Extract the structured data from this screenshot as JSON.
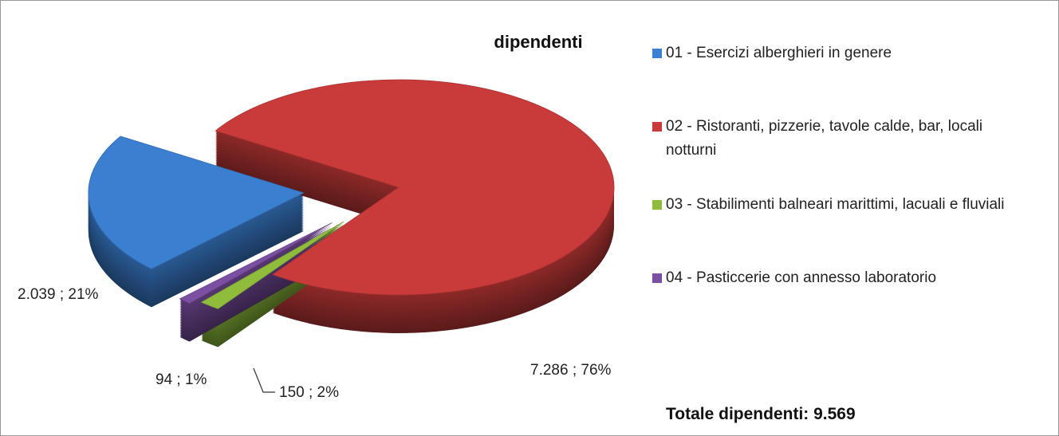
{
  "chart_data": {
    "type": "pie3d",
    "title": "dipendenti",
    "categories": [
      "01 - Esercizi alberghieri in genere",
      "02 - Ristoranti, pizzerie, tavole calde, bar, locali notturni",
      "03 - Stabilimenti balneari marittimi, lacuali e fluviali",
      "04 - Pasticcerie con annesso laboratorio"
    ],
    "values": [
      2039,
      7286,
      150,
      94
    ],
    "value_labels": [
      "2.039 ; 21%",
      "7.286 ; 76%",
      "150 ; 2%",
      "94 ; 1%"
    ],
    "colors": [
      "#3b7fd1",
      "#c93b3a",
      "#8fbd3b",
      "#7b4fa2"
    ],
    "legend": "right",
    "annotation": "Totale dipendenti: 9.569"
  }
}
